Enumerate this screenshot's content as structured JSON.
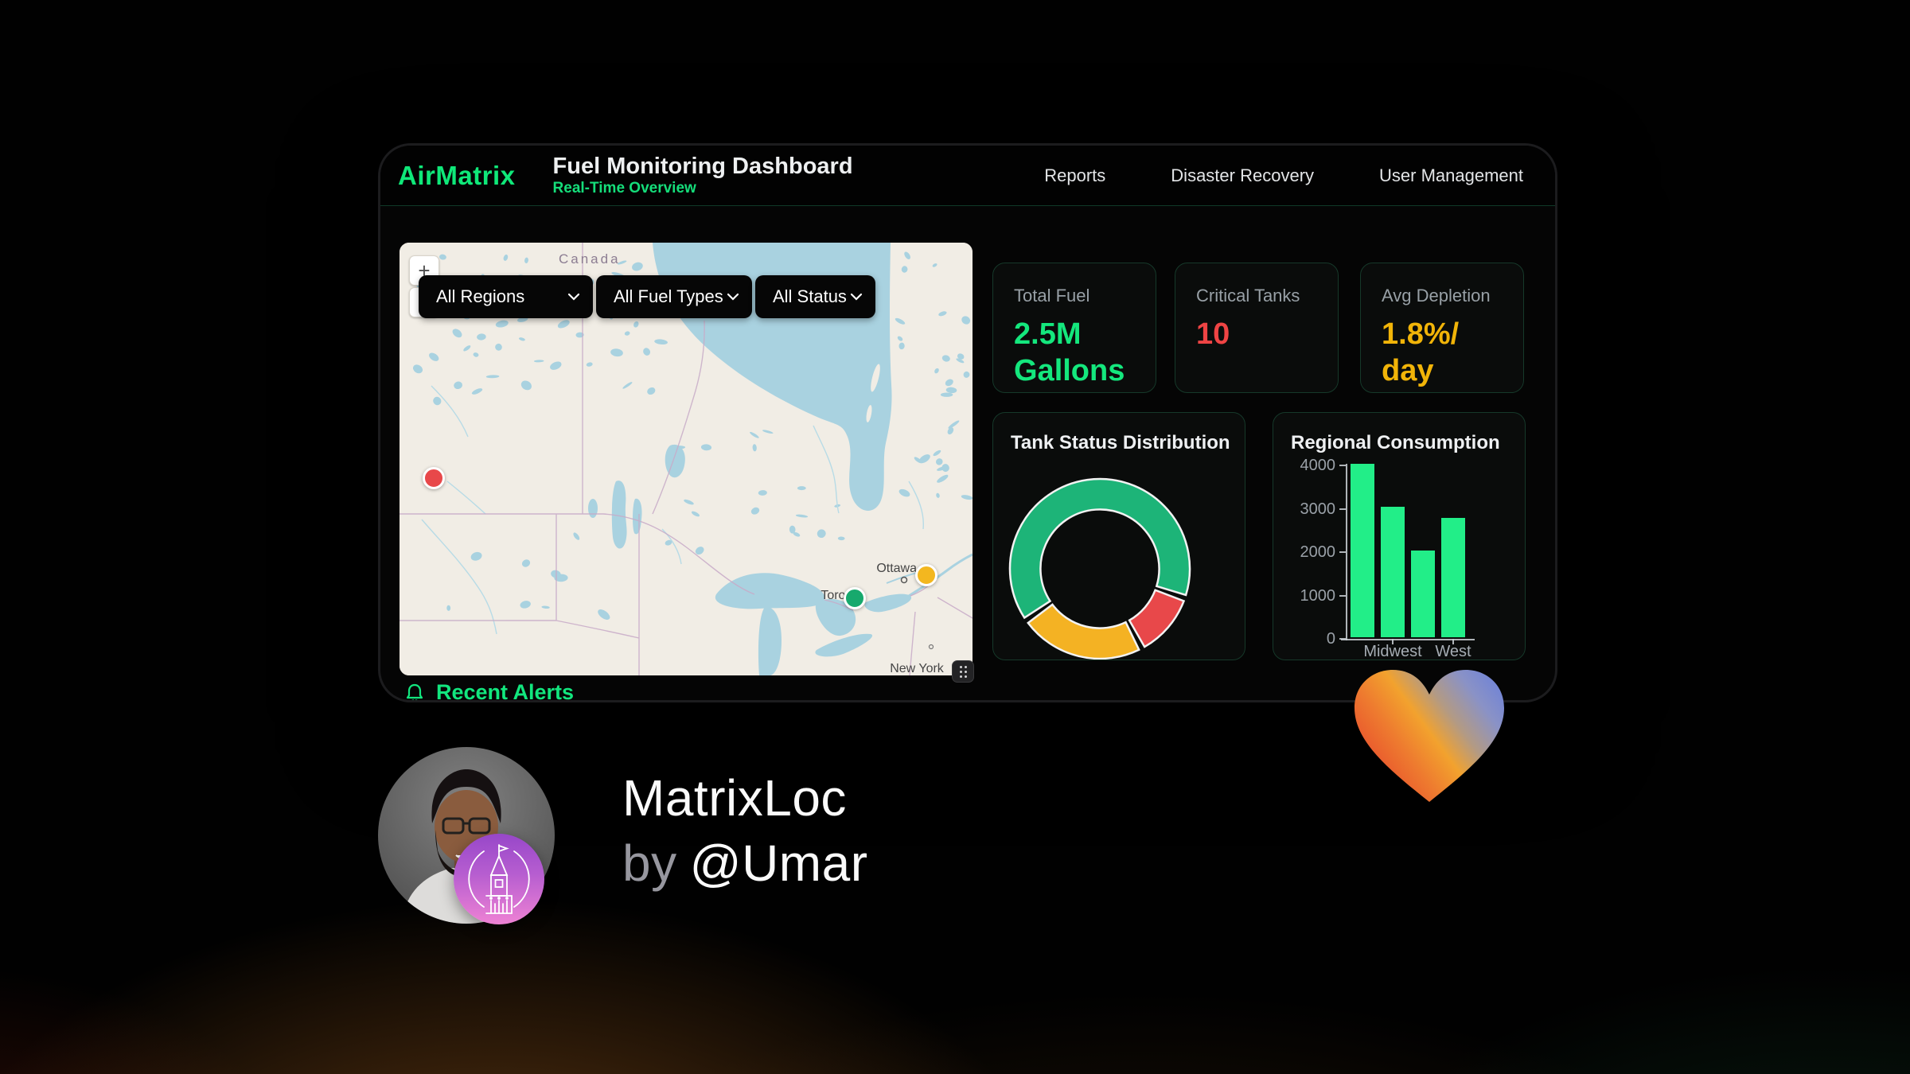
{
  "backdrop": {
    "heading": "MatrixLoc",
    "byline_prefix": "by",
    "byline_handle": "@Umar"
  },
  "app": {
    "brand": "AirMatrix",
    "title": "Fuel Monitoring Dashboard",
    "subtitle": "Real-Time Overview",
    "accent_color": "#0fe879",
    "nav": [
      "Reports",
      "Disaster Recovery",
      "User Management"
    ],
    "map": {
      "filters": [
        "All Regions",
        "All Fuel Types",
        "All Status"
      ],
      "zoom_in_label": "+",
      "zoom_out_label": "−",
      "country_label": "Canada",
      "city_labels": [
        "Ottawa",
        "Toronto",
        "New York"
      ],
      "markers": [
        {
          "area": "west",
          "color": "#e8484a"
        },
        {
          "area": "Ottawa",
          "color": "#f3b71f"
        },
        {
          "area": "Toronto",
          "color": "#17a96d"
        }
      ]
    },
    "stats": [
      {
        "label": "Total Fuel",
        "value_lines": [
          "2.5M",
          "Gallons"
        ],
        "color": "#14e77d"
      },
      {
        "label": "Critical Tanks",
        "value_lines": [
          "10"
        ],
        "color": "#ef4444"
      },
      {
        "label": "Avg Depletion",
        "value_lines": [
          "1.8%/",
          "day"
        ],
        "color": "#f1b408"
      }
    ],
    "alerts_title": "Recent Alerts"
  },
  "chart_data": [
    {
      "type": "pie",
      "donut": true,
      "title": "Tank Status Distribution",
      "legend": false,
      "start_angle_deg": 235,
      "inner_radius_pct": 66,
      "border_color": "#f2f2f2",
      "segments": [
        {
          "label": "normal-green",
          "value": 65,
          "color": "#1db478"
        },
        {
          "label": "critical-red",
          "value": 12,
          "color": "#e8484a"
        },
        {
          "label": "warning-amber",
          "value": 23,
          "color": "#f4b223"
        }
      ]
    },
    {
      "type": "bar",
      "title": "Regional Consumption",
      "categories": [
        "",
        "Midwest",
        "",
        "West"
      ],
      "values": [
        4000,
        3000,
        2000,
        2750
      ],
      "ylim": [
        0,
        4000
      ],
      "yticks": [
        0,
        1000,
        2000,
        3000,
        4000
      ],
      "bar_color": "#22ee88",
      "grid": false,
      "legend": false
    }
  ]
}
